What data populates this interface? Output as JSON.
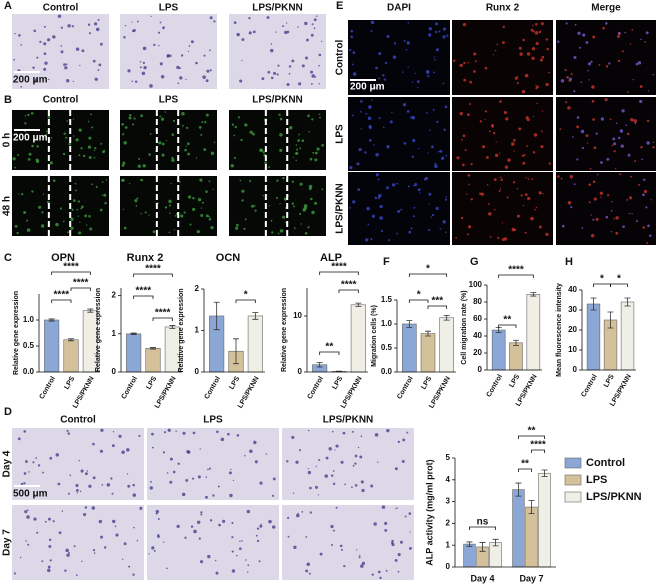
{
  "panels": {
    "A": {
      "letter": "A",
      "columns": [
        "Control",
        "LPS",
        "LPS/PKNN"
      ],
      "scale_bar": "200 μm"
    },
    "B": {
      "letter": "B",
      "columns": [
        "Control",
        "LPS",
        "LPS/PKNN"
      ],
      "rows": [
        "0 h",
        "48 h"
      ],
      "scale_bar": "200 μm"
    },
    "C": {
      "letter": "C"
    },
    "D": {
      "letter": "D",
      "columns": [
        "Control",
        "LPS",
        "LPS/PKNN"
      ],
      "rows": [
        "Day 4",
        "Day 7"
      ],
      "scale_bar": "500 μm"
    },
    "E": {
      "letter": "E",
      "columns": [
        "DAPI",
        "Runx 2",
        "Merge"
      ],
      "rows": [
        "Control",
        "LPS",
        "LPS/PKNN"
      ],
      "scale_bar": "200 μm"
    },
    "F": {
      "letter": "F"
    },
    "G": {
      "letter": "G"
    },
    "H": {
      "letter": "H"
    }
  },
  "chart_data": [
    {
      "type": "bar",
      "title": "OPN",
      "y_label": "Relative gene expression",
      "categories": [
        "Control",
        "LPS",
        "LPS/PKNN"
      ],
      "values": [
        1.0,
        0.62,
        1.18
      ],
      "errors": [
        0.02,
        0.02,
        0.03
      ],
      "colors": [
        "#8aa7d6",
        "#d4c19a",
        "#f0efe6"
      ],
      "ylim": [
        0,
        1.5
      ],
      "yticks": [
        {
          "value": 0,
          "label": "0.0"
        },
        {
          "value": 0.5,
          "label": "0.5"
        },
        {
          "value": 1,
          "label": "1.0"
        }
      ],
      "annotations": [
        "****",
        "****",
        "****"
      ]
    },
    {
      "type": "bar",
      "title": "Runx 2",
      "y_label": "Relative gene expression",
      "categories": [
        "Control",
        "LPS",
        "LPS/PKNN"
      ],
      "values": [
        1.0,
        0.62,
        1.18
      ],
      "errors": [
        0.02,
        0.02,
        0.04
      ],
      "colors": [
        "#8aa7d6",
        "#d4c19a",
        "#f0efe6"
      ],
      "ylim": [
        0,
        2.2
      ],
      "yticks": [
        0,
        1,
        2
      ],
      "annotations": [
        "****",
        "****",
        "****"
      ]
    },
    {
      "type": "bar",
      "title": "OCN",
      "y_label": "Relative gene expression",
      "categories": [
        "Control",
        "LPS",
        "LPS/PKNN"
      ],
      "values": [
        1.35,
        0.5,
        1.35
      ],
      "errors": [
        0.33,
        0.3,
        0.08
      ],
      "colors": [
        "#8aa7d6",
        "#d4c19a",
        "#f0efe6"
      ],
      "ylim": [
        0,
        2
      ],
      "yticks": [
        0,
        1,
        2
      ],
      "annotations": [
        "*"
      ]
    },
    {
      "type": "bar",
      "title": "ALP",
      "y_label": "Relative gene expression",
      "categories": [
        "Control",
        "LPS",
        "LPS/PKNN"
      ],
      "values": [
        1.3,
        0.1,
        12.0
      ],
      "errors": [
        0.4,
        0.05,
        0.3
      ],
      "colors": [
        "#8aa7d6",
        "#d4c19a",
        "#f0efe6"
      ],
      "ylim": [
        0,
        15
      ],
      "yticks": [
        0,
        10
      ],
      "annotations": [
        "****",
        "**",
        "****"
      ]
    },
    {
      "type": "bar",
      "y_label": "Migration cells (%)",
      "categories": [
        "Control",
        "LPS",
        "LPS/PKNN"
      ],
      "values": [
        1.0,
        0.8,
        1.13
      ],
      "errors": [
        0.07,
        0.05,
        0.05
      ],
      "colors": [
        "#8aa7d6",
        "#d4c19a",
        "#f0efe6"
      ],
      "ylim": [
        0,
        1.5
      ],
      "yticks": [
        {
          "value": 0,
          "label": "0.0"
        },
        {
          "value": 0.5,
          "label": "0.5"
        },
        {
          "value": 1,
          "label": "1.0"
        },
        {
          "value": 1.5,
          "label": "1.5"
        }
      ],
      "annotations": [
        "*",
        "*",
        "***"
      ]
    },
    {
      "type": "bar",
      "y_label": "Cell migration rate (%)",
      "categories": [
        "Control",
        "LPS",
        "LPS/PKNN"
      ],
      "values": [
        47,
        32,
        89
      ],
      "errors": [
        3,
        3,
        2
      ],
      "colors": [
        "#8aa7d6",
        "#d4c19a",
        "#f0efe6"
      ],
      "ylim": [
        0,
        100
      ],
      "yticks": [
        0,
        20,
        40,
        60,
        80,
        100
      ],
      "annotations": [
        "****",
        "**"
      ]
    },
    {
      "type": "bar",
      "y_label": "Mean fluorescence intensity",
      "categories": [
        "Control",
        "LPS",
        "LPS/PKNN"
      ],
      "values": [
        33,
        25,
        34
      ],
      "errors": [
        3,
        4,
        2
      ],
      "colors": [
        "#8aa7d6",
        "#d4c19a",
        "#f0efe6"
      ],
      "ylim": [
        0,
        40
      ],
      "yticks": [
        0,
        10,
        20,
        30,
        40
      ],
      "annotations": [
        "*",
        "*"
      ]
    },
    {
      "type": "grouped-bar",
      "y_label": "ALP activity (mg/ml prot)",
      "categories": [
        "Day 4",
        "Day 7"
      ],
      "series": [
        {
          "name": "Control",
          "color": "#8aa7d6",
          "values": [
            1.05,
            3.55
          ],
          "errors": [
            0.1,
            0.3
          ]
        },
        {
          "name": "LPS",
          "color": "#d4c19a",
          "values": [
            0.92,
            2.75
          ],
          "errors": [
            0.2,
            0.3
          ]
        },
        {
          "name": "LPS/PKNN",
          "color": "#f0efe6",
          "values": [
            1.12,
            4.3
          ],
          "errors": [
            0.15,
            0.15
          ]
        }
      ],
      "ylim": [
        0,
        5
      ],
      "yticks": [
        0,
        1,
        2,
        3,
        4,
        5
      ],
      "legend": "right",
      "annotations": [
        "ns",
        "**",
        "**",
        "****"
      ]
    }
  ]
}
